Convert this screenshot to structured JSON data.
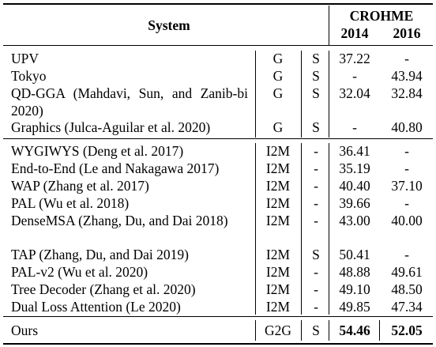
{
  "header": {
    "system": "System",
    "crohme": "CROHME",
    "year1": "2014",
    "year2": "2016"
  },
  "group1": [
    {
      "system": "UPV",
      "type": "G",
      "s": "S",
      "y2014": "37.22",
      "y2016": "-"
    },
    {
      "system": "Tokyo",
      "type": "G",
      "s": "S",
      "y2014": "-",
      "y2016": "43.94"
    },
    {
      "system": "QD-GGA (Mahdavi, Sun, and Zanib-bi 2020)",
      "type": "G",
      "s": "S",
      "y2014": "32.04",
      "y2016": "32.84"
    },
    {
      "system": "Graphics (Julca-Aguilar et al. 2020)",
      "type": "G",
      "s": "S",
      "y2014": "-",
      "y2016": "40.80"
    }
  ],
  "group2": [
    {
      "system": "WYGIWYS (Deng et al. 2017)",
      "type": "I2M",
      "s": "-",
      "y2014": "36.41",
      "y2016": "-"
    },
    {
      "system": "End-to-End (Le and Nakagawa 2017)",
      "type": "I2M",
      "s": "-",
      "y2014": "35.19",
      "y2016": "-"
    },
    {
      "system": "WAP (Zhang et al. 2017)",
      "type": "I2M",
      "s": "-",
      "y2014": "40.40",
      "y2016": "37.10"
    },
    {
      "system": "PAL (Wu et al. 2018)",
      "type": "I2M",
      "s": "-",
      "y2014": "39.66",
      "y2016": "-"
    },
    {
      "system": "DenseMSA (Zhang, Du, and Dai 2018)",
      "type": "I2M",
      "s": "-",
      "y2014": "43.00",
      "y2016": "40.00"
    },
    {
      "system": "TAP (Zhang, Du, and Dai 2019)",
      "type": "I2M",
      "s": "S",
      "y2014": "50.41",
      "y2016": "-"
    },
    {
      "system": "PAL-v2 (Wu et al. 2020)",
      "type": "I2M",
      "s": "-",
      "y2014": "48.88",
      "y2016": "49.61"
    },
    {
      "system": "Tree Decoder (Zhang et al. 2020)",
      "type": "I2M",
      "s": "-",
      "y2014": "49.10",
      "y2016": "48.50"
    },
    {
      "system": "Dual Loss Attention (Le 2020)",
      "type": "I2M",
      "s": "-",
      "y2014": "49.85",
      "y2016": "47.34"
    }
  ],
  "ours": {
    "system": "Ours",
    "type": "G2G",
    "s": "S",
    "y2014": "54.46",
    "y2016": "52.05"
  }
}
